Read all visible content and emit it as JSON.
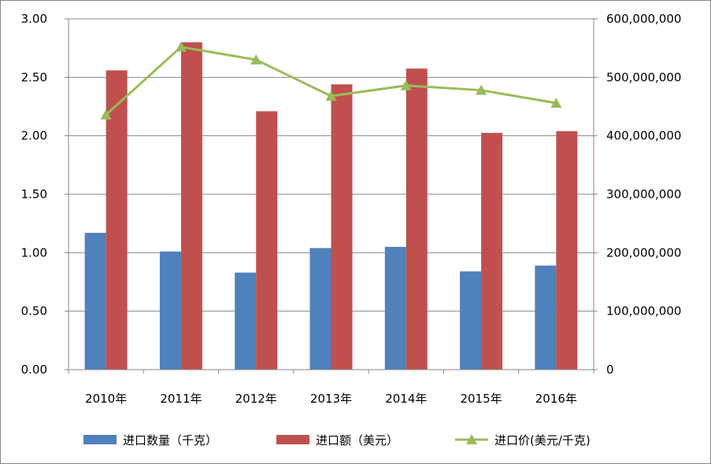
{
  "chart_data": {
    "type": "bar",
    "categories": [
      "2010年",
      "2011年",
      "2012年",
      "2013年",
      "2014年",
      "2015年",
      "2016年"
    ],
    "series": [
      {
        "name": "进口数量（千克）",
        "kind": "bar",
        "axis": "left",
        "color": "#4F81BD",
        "values": [
          1.17,
          1.01,
          0.83,
          1.04,
          1.05,
          0.84,
          0.89
        ]
      },
      {
        "name": "进口额（美元）",
        "kind": "bar",
        "axis": "right",
        "color": "#C0504D",
        "values": [
          512000000,
          560000000,
          442000000,
          488000000,
          515000000,
          405000000,
          408000000
        ]
      },
      {
        "name": "进口价(美元/千克)",
        "kind": "line",
        "axis": "left",
        "color": "#9BBB59",
        "marker": "triangle",
        "values": [
          2.18,
          2.76,
          2.65,
          2.34,
          2.43,
          2.39,
          2.28
        ]
      }
    ],
    "y_left": {
      "lim": [
        0,
        3
      ],
      "ticks": [
        "0.00",
        "0.50",
        "1.00",
        "1.50",
        "2.00",
        "2.50",
        "3.00"
      ]
    },
    "y_right": {
      "lim": [
        0,
        600000000
      ],
      "ticks": [
        "0",
        "100,000,000",
        "200,000,000",
        "300,000,000",
        "400,000,000",
        "500,000,000",
        "600,000,000"
      ]
    },
    "grid": true,
    "legend": "bottom"
  }
}
